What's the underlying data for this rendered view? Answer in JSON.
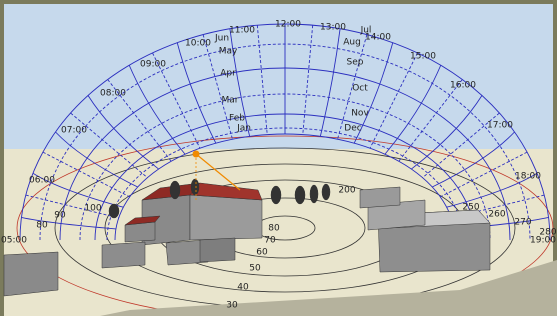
{
  "hours": [
    "05:00",
    "06:00",
    "07:00",
    "08:00",
    "09:00",
    "10:00",
    "11:00",
    "12:00",
    "13:00",
    "14:00",
    "15:00",
    "16:00",
    "17:00",
    "18:00",
    "19:00"
  ],
  "months": [
    "Jun",
    "May",
    "Apr",
    "Mar",
    "Feb",
    "Jan",
    "Jul",
    "Aug",
    "Sep",
    "Oct",
    "Nov",
    "Dec"
  ],
  "azimuths": [
    "80",
    "90",
    "100",
    "200",
    "250",
    "260",
    "270",
    "280"
  ],
  "altitudes": [
    "80",
    "70",
    "60",
    "50",
    "40",
    "30"
  ]
}
